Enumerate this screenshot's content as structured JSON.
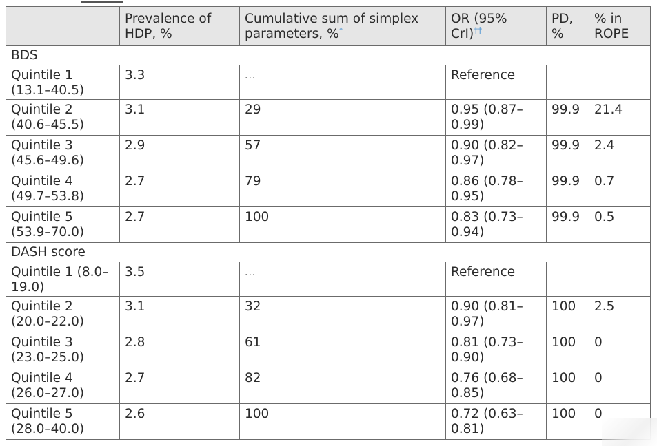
{
  "table": {
    "headers": {
      "group": "",
      "prevalence": "Prevalence of HDP, %",
      "cumsum": "Cumulative sum of simplex parameters, %",
      "cumsum_mark": "*",
      "or": "OR (95% CrI)",
      "or_mark": "†‡",
      "pd": "PD, %",
      "rope": "% in ROPE"
    },
    "sections": [
      {
        "title": "BDS",
        "rows": [
          {
            "label": "Quintile 1 (13.1–40.5)",
            "prevalence": "3.3",
            "cumsum": "...",
            "or": "Reference",
            "pd": "",
            "rope": ""
          },
          {
            "label": "Quintile 2 (40.6–45.5)",
            "prevalence": "3.1",
            "cumsum": "29",
            "or": "0.95 (0.87–0.99)",
            "pd": "99.9",
            "rope": "21.4"
          },
          {
            "label": "Quintile 3 (45.6–49.6)",
            "prevalence": "2.9",
            "cumsum": "57",
            "or": "0.90 (0.82–0.97)",
            "pd": "99.9",
            "rope": "2.4"
          },
          {
            "label": "Quintile 4 (49.7–53.8)",
            "prevalence": "2.7",
            "cumsum": "79",
            "or": "0.86 (0.78–0.95)",
            "pd": "99.9",
            "rope": "0.7"
          },
          {
            "label": "Quintile 5 (53.9–70.0)",
            "prevalence": "2.7",
            "cumsum": "100",
            "or": "0.83 (0.73–0.94)",
            "pd": "99.9",
            "rope": "0.5"
          }
        ]
      },
      {
        "title": "DASH score",
        "rows": [
          {
            "label": "Quintile 1 (8.0–19.0)",
            "prevalence": "3.5",
            "cumsum": "...",
            "or": "Reference",
            "pd": "",
            "rope": ""
          },
          {
            "label": "Quintile 2 (20.0–22.0)",
            "prevalence": "3.1",
            "cumsum": "32",
            "or": "0.90 (0.81–0.97)",
            "pd": "100",
            "rope": "2.5"
          },
          {
            "label": "Quintile 3 (23.0–25.0)",
            "prevalence": "2.8",
            "cumsum": "61",
            "or": "0.81 (0.73–0.90)",
            "pd": "100",
            "rope": "0"
          },
          {
            "label": "Quintile 4 (26.0–27.0)",
            "prevalence": "2.7",
            "cumsum": "82",
            "or": "0.76 (0.68–0.85)",
            "pd": "100",
            "rope": "0"
          },
          {
            "label": "Quintile 5 (28.0–40.0)",
            "prevalence": "2.6",
            "cumsum": "100",
            "or": "0.72 (0.63–0.81)",
            "pd": "100",
            "rope": "0"
          }
        ]
      }
    ]
  },
  "colors": {
    "header_bg": "#e6e6e6",
    "border": "#6b6b6b",
    "footnote_symbol": "#5a9bd5",
    "text": "#2b2b2b"
  }
}
